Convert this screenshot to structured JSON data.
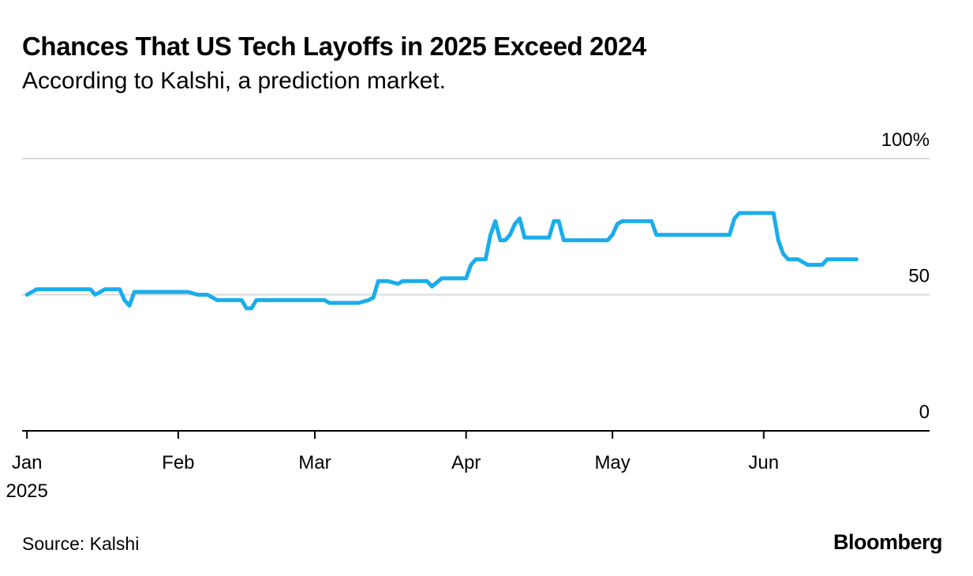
{
  "header": {
    "title": "Chances That US Tech Layoffs in 2025 Exceed 2024",
    "subtitle": "According to Kalshi, a prediction market."
  },
  "footer": {
    "source": "Source: Kalshi",
    "brand": "Bloomberg"
  },
  "colors": {
    "line": "#1BADEB",
    "grid": "#d9d9d9",
    "axis": "#000000"
  },
  "chart_data": {
    "type": "line",
    "title": "Chances That US Tech Layoffs in 2025 Exceed 2024",
    "subtitle": "According to Kalshi, a prediction market.",
    "xlabel": "",
    "ylabel": "",
    "ylim": [
      0,
      100
    ],
    "xlim": [
      "2024-12-31",
      "2025-07-05"
    ],
    "y_ticks": [
      {
        "value": 0,
        "label": "0"
      },
      {
        "value": 50,
        "label": "50"
      },
      {
        "value": 100,
        "label": "100%"
      }
    ],
    "x_ticks": [
      {
        "date": "2025-01-01",
        "label": "Jan",
        "sublabel": "2025"
      },
      {
        "date": "2025-02-01",
        "label": "Feb"
      },
      {
        "date": "2025-03-01",
        "label": "Mar"
      },
      {
        "date": "2025-04-01",
        "label": "Apr"
      },
      {
        "date": "2025-05-01",
        "label": "May"
      },
      {
        "date": "2025-06-01",
        "label": "Jun"
      }
    ],
    "grid": true,
    "y_axis_position": "right",
    "series": [
      {
        "points": [
          [
            "2025-01-01",
            50
          ],
          [
            "2025-01-03",
            52
          ],
          [
            "2025-01-08",
            52
          ],
          [
            "2025-01-14",
            52
          ],
          [
            "2025-01-15",
            50
          ],
          [
            "2025-01-17",
            52
          ],
          [
            "2025-01-20",
            52
          ],
          [
            "2025-01-21",
            48
          ],
          [
            "2025-01-22",
            46
          ],
          [
            "2025-01-23",
            51
          ],
          [
            "2025-01-28",
            51
          ],
          [
            "2025-02-03",
            51
          ],
          [
            "2025-02-05",
            50
          ],
          [
            "2025-02-07",
            50
          ],
          [
            "2025-02-09",
            48
          ],
          [
            "2025-02-14",
            48
          ],
          [
            "2025-02-15",
            45
          ],
          [
            "2025-02-16",
            45
          ],
          [
            "2025-02-17",
            48
          ],
          [
            "2025-02-24",
            48
          ],
          [
            "2025-03-03",
            48
          ],
          [
            "2025-03-04",
            47
          ],
          [
            "2025-03-10",
            47
          ],
          [
            "2025-03-12",
            48
          ],
          [
            "2025-03-13",
            49
          ],
          [
            "2025-03-14",
            55
          ],
          [
            "2025-03-16",
            55
          ],
          [
            "2025-03-18",
            54
          ],
          [
            "2025-03-19",
            55
          ],
          [
            "2025-03-24",
            55
          ],
          [
            "2025-03-25",
            53
          ],
          [
            "2025-03-27",
            56
          ],
          [
            "2025-04-01",
            56
          ],
          [
            "2025-04-02",
            61
          ],
          [
            "2025-04-03",
            63
          ],
          [
            "2025-04-05",
            63
          ],
          [
            "2025-04-06",
            72
          ],
          [
            "2025-04-07",
            77
          ],
          [
            "2025-04-08",
            70
          ],
          [
            "2025-04-09",
            70
          ],
          [
            "2025-04-10",
            72
          ],
          [
            "2025-04-11",
            76
          ],
          [
            "2025-04-12",
            78
          ],
          [
            "2025-04-13",
            71
          ],
          [
            "2025-04-15",
            71
          ],
          [
            "2025-04-18",
            71
          ],
          [
            "2025-04-19",
            77
          ],
          [
            "2025-04-20",
            77
          ],
          [
            "2025-04-21",
            70
          ],
          [
            "2025-04-25",
            70
          ],
          [
            "2025-04-30",
            70
          ],
          [
            "2025-05-01",
            72
          ],
          [
            "2025-05-02",
            76
          ],
          [
            "2025-05-03",
            77
          ],
          [
            "2025-05-07",
            77
          ],
          [
            "2025-05-09",
            77
          ],
          [
            "2025-05-10",
            72
          ],
          [
            "2025-05-11",
            72
          ],
          [
            "2025-05-17",
            72
          ],
          [
            "2025-05-25",
            72
          ],
          [
            "2025-05-26",
            78
          ],
          [
            "2025-05-27",
            80
          ],
          [
            "2025-05-31",
            80
          ],
          [
            "2025-06-03",
            80
          ],
          [
            "2025-06-04",
            70
          ],
          [
            "2025-06-05",
            65
          ],
          [
            "2025-06-06",
            63
          ],
          [
            "2025-06-08",
            63
          ],
          [
            "2025-06-09",
            62
          ],
          [
            "2025-06-10",
            61
          ],
          [
            "2025-06-13",
            61
          ],
          [
            "2025-06-14",
            63
          ],
          [
            "2025-06-20",
            63
          ]
        ]
      }
    ]
  }
}
